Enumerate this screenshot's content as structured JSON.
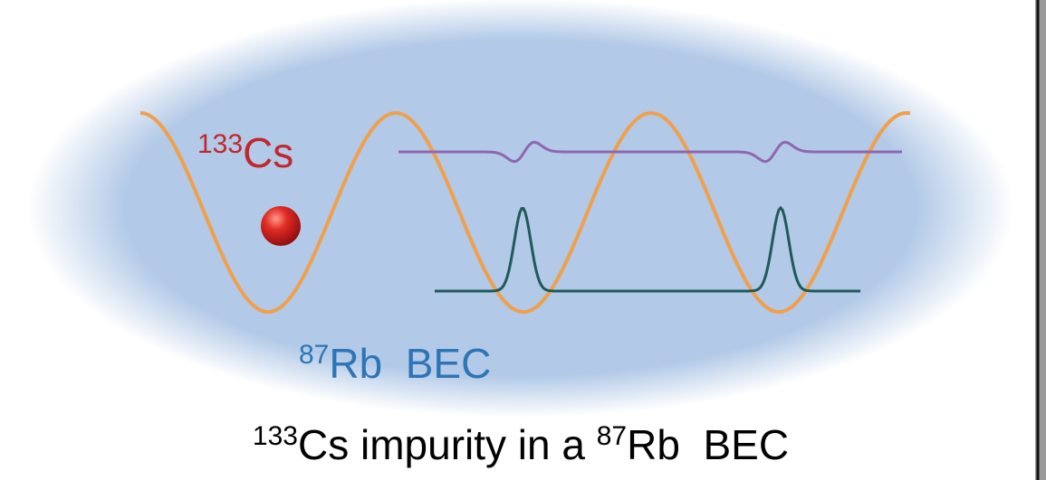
{
  "labels": {
    "impurity": {
      "mass": "133",
      "symbol": "Cs"
    },
    "bec": {
      "mass": "87",
      "symbol": "Rb  BEC"
    }
  },
  "caption": {
    "parts": [
      "133",
      "Cs impurity in a ",
      "87",
      "Rb  BEC"
    ]
  }
}
